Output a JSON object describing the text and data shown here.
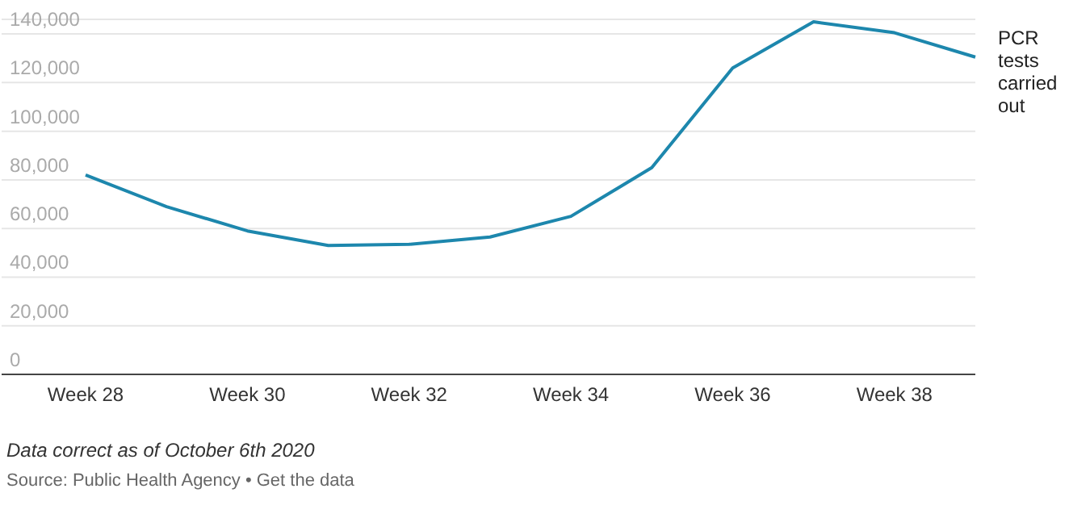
{
  "chart_data": {
    "type": "line",
    "categories": [
      "Week 28",
      null,
      "Week 30",
      null,
      "Week 32",
      null,
      "Week 34",
      null,
      "Week 36",
      null,
      "Week 38",
      null
    ],
    "series": [
      {
        "name": "PCR tests carried out",
        "color": "#1d87ad",
        "values": [
          82000,
          69000,
          59000,
          53000,
          53500,
          56500,
          65000,
          85000,
          126000,
          145000,
          140500,
          130500
        ]
      }
    ],
    "ylim": [
      0,
      146000
    ],
    "yticks": [
      0,
      {
        "value": 20000,
        "label": "20,000"
      },
      {
        "value": 40000,
        "label": "40,000"
      },
      {
        "value": 60000,
        "label": "60,000"
      },
      {
        "value": 80000,
        "label": "80,000"
      },
      {
        "value": 100000,
        "label": "100,000"
      },
      {
        "value": 120000,
        "label": "120,000"
      },
      {
        "value": 140000,
        "label": "140,000"
      }
    ],
    "grid": "y",
    "legend": false,
    "marker": "none",
    "line_style": "solid",
    "annotations": [
      "Data correct as of October 6th 2020",
      "Source: Public Health Agency • Get the data"
    ]
  }
}
